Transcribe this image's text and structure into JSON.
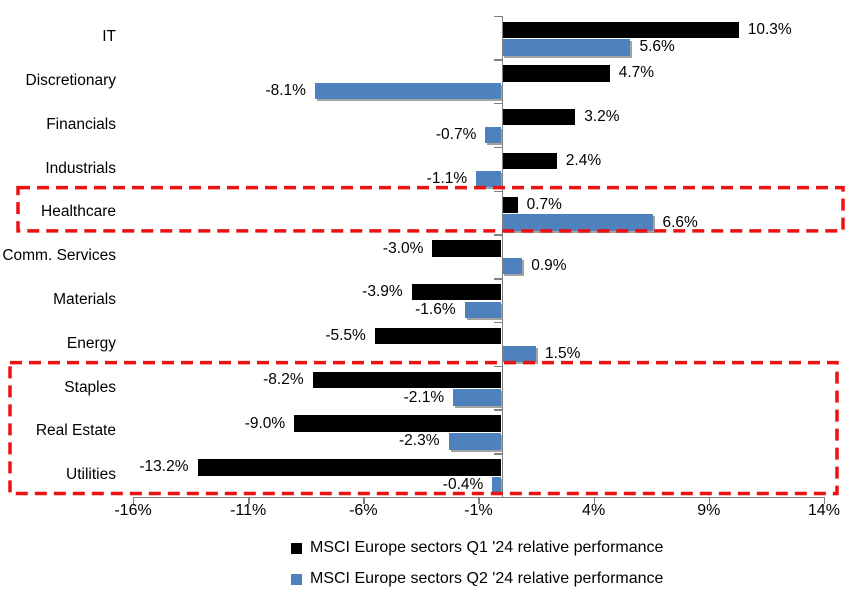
{
  "chart_data": {
    "type": "bar",
    "orientation": "horizontal",
    "categories": [
      "IT",
      "Discretionary",
      "Financials",
      "Industrials",
      "Healthcare",
      "Comm. Services",
      "Materials",
      "Energy",
      "Staples",
      "Real Estate",
      "Utilities"
    ],
    "series": [
      {
        "name": "MSCI Europe sectors Q1 '24 relative performance",
        "color": "#000000",
        "values": [
          10.3,
          4.7,
          3.2,
          2.4,
          0.7,
          -3.0,
          -3.9,
          -5.5,
          -8.2,
          -9.0,
          -13.2
        ],
        "labels": [
          "10.3%",
          "4.7%",
          "3.2%",
          "2.4%",
          "0.7%",
          "-3.0%",
          "-3.9%",
          "-5.5%",
          "-8.2%",
          "-9.0%",
          "-13.2%"
        ]
      },
      {
        "name": "MSCI Europe sectors Q2 '24 relative performance",
        "color": "#4F81BD",
        "values": [
          5.6,
          -8.1,
          -0.7,
          -1.1,
          6.6,
          0.9,
          -1.6,
          1.5,
          -2.1,
          -2.3,
          -0.4
        ],
        "labels": [
          "5.6%",
          "-8.1%",
          "-0.7%",
          "-1.1%",
          "6.6%",
          "0.9%",
          "-1.6%",
          "1.5%",
          "-2.1%",
          "-2.3%",
          "-0.4%"
        ]
      }
    ],
    "x_axis": {
      "tick_labels": [
        "-16%",
        "-11%",
        "-6%",
        "-1%",
        "4%",
        "9%",
        "14%"
      ],
      "tick_values": [
        -16,
        -11,
        -6,
        -1,
        4,
        9,
        14
      ],
      "min": -16,
      "max": 14
    },
    "grid": false,
    "legend_position": "bottom",
    "axis_color": "#808080",
    "highlight_boxes": [
      {
        "id": "healthcare-highlight",
        "categories": [
          "Healthcare"
        ],
        "color": "#EE1111"
      },
      {
        "id": "defensives-highlight",
        "categories": [
          "Staples",
          "Real Estate",
          "Utilities"
        ],
        "color": "#EE1111"
      }
    ]
  }
}
